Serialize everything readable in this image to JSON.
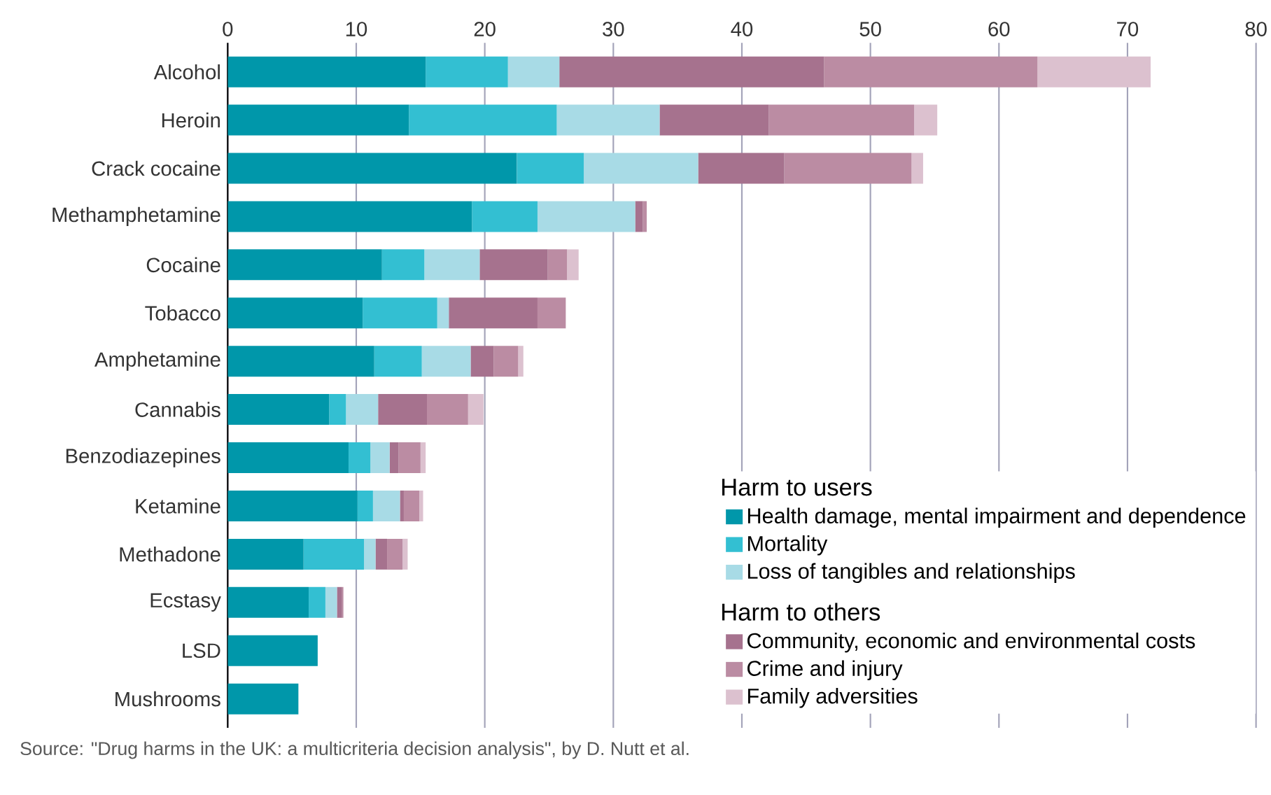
{
  "chart_data": {
    "type": "bar",
    "orientation": "horizontal",
    "stacked": true,
    "categories": [
      "Alcohol",
      "Heroin",
      "Crack cocaine",
      "Methamphetamine",
      "Cocaine",
      "Tobacco",
      "Amphetamine",
      "Cannabis",
      "Benzodiazepines",
      "Ketamine",
      "Methadone",
      "Ecstasy",
      "LSD",
      "Mushrooms"
    ],
    "series": [
      {
        "name": "Health damage, mental impairment and dependence",
        "color": "#0097aa",
        "values": [
          15.4,
          14.1,
          22.5,
          19.0,
          12.0,
          10.5,
          11.4,
          7.9,
          9.4,
          10.1,
          5.9,
          6.3,
          7.0,
          5.5
        ]
      },
      {
        "name": "Mortality",
        "color": "#33bfd2",
        "values": [
          6.4,
          11.5,
          5.2,
          5.1,
          3.3,
          5.8,
          3.7,
          1.3,
          1.7,
          1.2,
          4.7,
          1.3,
          0,
          0
        ]
      },
      {
        "name": "Loss of tangibles and relationships",
        "color": "#a8dbe6",
        "values": [
          4.0,
          8.0,
          8.9,
          7.6,
          4.3,
          0.9,
          3.8,
          2.5,
          1.5,
          2.1,
          0.9,
          0.9,
          0,
          0
        ]
      },
      {
        "name": "Community, economic and environmental costs",
        "color": "#a6728e",
        "values": [
          20.6,
          8.5,
          6.7,
          0.6,
          5.3,
          6.9,
          1.8,
          3.8,
          0.7,
          0.3,
          0.9,
          0.4,
          0,
          0
        ]
      },
      {
        "name": "Crime and injury",
        "color": "#bb8ca3",
        "values": [
          16.6,
          11.3,
          9.9,
          0.3,
          1.5,
          2.2,
          1.9,
          3.2,
          1.7,
          1.2,
          1.2,
          0.1,
          0,
          0
        ]
      },
      {
        "name": "Family adversities",
        "color": "#dcc1cf",
        "values": [
          8.8,
          1.8,
          0.9,
          0,
          0.9,
          0,
          0.4,
          1.2,
          0.4,
          0.3,
          0.4,
          0,
          0,
          0
        ]
      }
    ],
    "xlim": [
      0,
      80
    ],
    "xticks": [
      0,
      10,
      20,
      30,
      40,
      50,
      60,
      70,
      80
    ],
    "grid": "x",
    "legend": "bottom right",
    "legend_title": "Harm to users",
    "annotations": [
      "Harm to others",
      "Source: \"Drug harms in the UK: a multicriteria decision analysis\", by D. Nutt et al."
    ]
  }
}
